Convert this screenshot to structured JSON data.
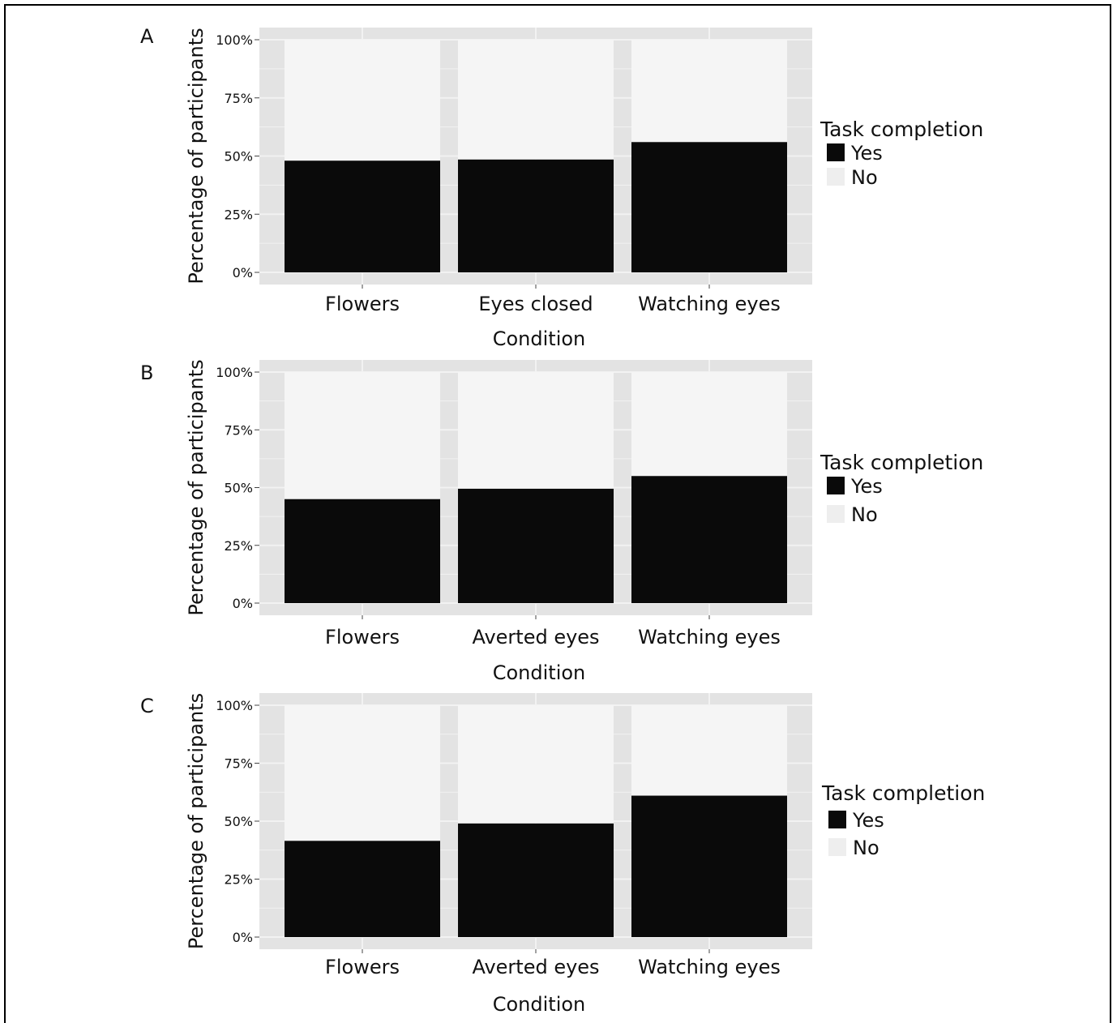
{
  "chart_data": [
    {
      "panel": "A",
      "type": "bar",
      "stacked": true,
      "categories": [
        "Flowers",
        "Eyes closed",
        "Watching eyes"
      ],
      "series": [
        {
          "name": "Yes",
          "values": [
            48,
            48.5,
            56
          ]
        },
        {
          "name": "No",
          "values": [
            52,
            51.5,
            44
          ]
        }
      ],
      "xlabel": "Condition",
      "ylabel": "Percentage of participants",
      "yticks": [
        "0%",
        "25%",
        "50%",
        "75%",
        "100%"
      ],
      "ylim": [
        0,
        100
      ],
      "legend_title": "Task completion",
      "legend_labels": [
        "Yes",
        "No"
      ],
      "legend_position": "right"
    },
    {
      "panel": "B",
      "type": "bar",
      "stacked": true,
      "categories": [
        "Flowers",
        "Averted eyes",
        "Watching eyes"
      ],
      "series": [
        {
          "name": "Yes",
          "values": [
            45,
            49.5,
            55
          ]
        },
        {
          "name": "No",
          "values": [
            55,
            50.5,
            45
          ]
        }
      ],
      "xlabel": "Condition",
      "ylabel": "Percentage of participants",
      "yticks": [
        "0%",
        "25%",
        "50%",
        "75%",
        "100%"
      ],
      "ylim": [
        0,
        100
      ],
      "legend_title": "Task completion",
      "legend_labels": [
        "Yes",
        "No"
      ],
      "legend_position": "right"
    },
    {
      "panel": "C",
      "type": "bar",
      "stacked": true,
      "categories": [
        "Flowers",
        "Averted eyes",
        "Watching eyes"
      ],
      "series": [
        {
          "name": "Yes",
          "values": [
            41.5,
            49,
            61
          ]
        },
        {
          "name": "No",
          "values": [
            58.5,
            51,
            39
          ]
        }
      ],
      "xlabel": "Condition",
      "ylabel": "Percentage of participants",
      "yticks": [
        "0%",
        "25%",
        "50%",
        "75%",
        "100%"
      ],
      "ylim": [
        0,
        100
      ],
      "legend_title": "Task completion",
      "legend_labels": [
        "Yes",
        "No"
      ],
      "legend_position": "right"
    }
  ],
  "colors": {
    "yes": "#0a0a0a",
    "no": "#f5f5f5",
    "panel_bg": "#e3e3e3",
    "grid": "#f2f2f2",
    "text": "#111111"
  }
}
